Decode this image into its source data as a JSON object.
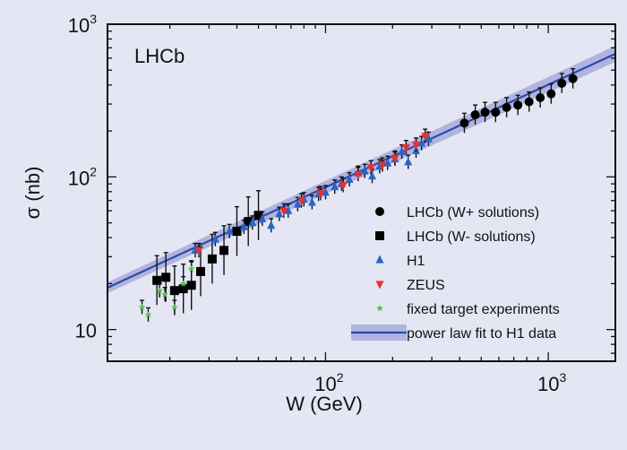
{
  "chart_data": {
    "type": "scatter",
    "title": "",
    "annotation": "LHCb",
    "xlabel": "W (GeV)",
    "ylabel": "σ (nb)",
    "xscale": "log",
    "yscale": "log",
    "xlim": [
      10.5,
      2000
    ],
    "ylim": [
      6.2,
      1000
    ],
    "x_ticks": [
      {
        "base": "10",
        "exp": "2",
        "value": 100
      },
      {
        "base": "10",
        "exp": "3",
        "value": 1000
      }
    ],
    "y_ticks": [
      {
        "base": "10",
        "exp": "",
        "value": 10
      },
      {
        "base": "10",
        "exp": "2",
        "value": 100
      },
      {
        "base": "10",
        "exp": "3",
        "value": 1000
      }
    ],
    "legend_position": "lower-right",
    "colors": {
      "background": "#e4e6f4",
      "lhcb": "#000000",
      "h1": "#2b65c4",
      "zeus": "#e8302e",
      "fixed": "#5bbf4a",
      "fit": "#2b4aa8",
      "fit_band": "#a3a7d8"
    },
    "series": [
      {
        "name": "LHCb (W+ solutions)",
        "marker": "circle",
        "x": [
          420,
          470,
          520,
          580,
          650,
          730,
          820,
          920,
          1030,
          1150,
          1290
        ],
        "y": [
          225,
          255,
          265,
          265,
          285,
          295,
          310,
          330,
          350,
          410,
          440
        ]
      },
      {
        "name": "LHCb (W- solutions)",
        "marker": "square",
        "x": [
          17.5,
          19.2,
          21,
          23,
          25,
          27.5,
          31,
          35,
          40,
          45,
          50
        ],
        "y": [
          21,
          22,
          18,
          18.5,
          19.5,
          24,
          29,
          33,
          44,
          51,
          56
        ]
      },
      {
        "name": "H1",
        "marker": "triangle-up",
        "x": [
          26,
          32,
          37,
          43,
          47,
          52,
          57,
          62,
          68,
          75,
          80,
          87,
          93,
          100,
          110,
          118,
          128,
          140,
          150,
          162,
          175,
          190,
          205,
          220,
          235,
          255,
          270,
          290
        ],
        "y": [
          33,
          39,
          44,
          47,
          50,
          53,
          48,
          57,
          60,
          66,
          71,
          68,
          77,
          79,
          86,
          90,
          96,
          106,
          109,
          101,
          117,
          123,
          131,
          146,
          125,
          148,
          166,
          177
        ]
      },
      {
        "name": "ZEUS",
        "marker": "triangle-down",
        "x": [
          27,
          65,
          78,
          95,
          120,
          140,
          160,
          180,
          205,
          230,
          255,
          280
        ],
        "y": [
          33,
          60,
          70,
          78,
          88,
          104,
          115,
          120,
          133,
          156,
          162,
          185
        ]
      },
      {
        "name": "fixed target experiments",
        "marker": "star",
        "x": [
          15,
          16,
          18,
          19,
          21,
          23,
          25
        ],
        "y": [
          14,
          12.5,
          18,
          17,
          14,
          20,
          25
        ]
      }
    ],
    "fit": {
      "name": "power law fit to H1 data",
      "x": [
        10.5,
        2000
      ],
      "y": [
        18.8,
        640
      ]
    }
  }
}
